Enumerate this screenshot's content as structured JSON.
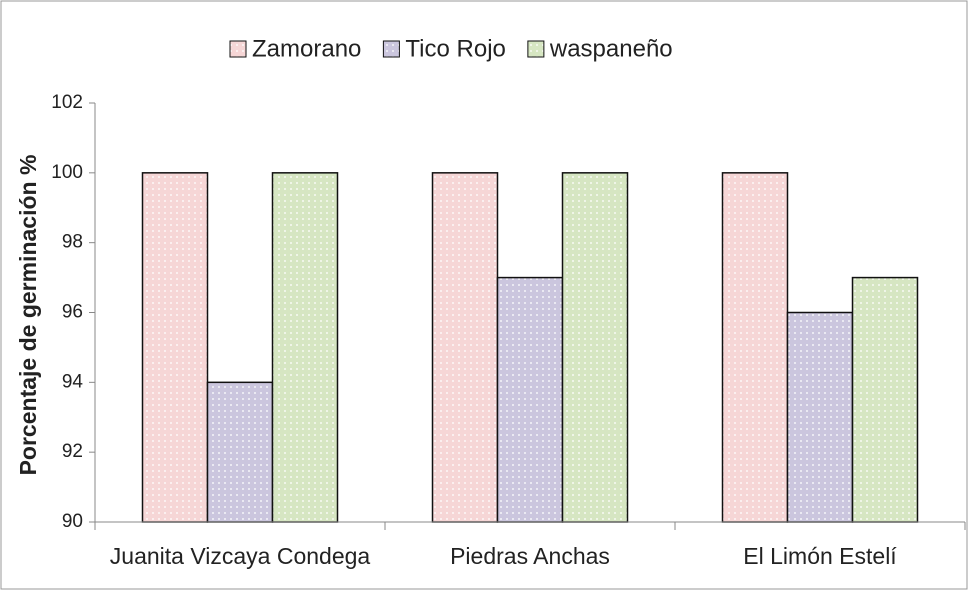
{
  "chart_data": {
    "type": "bar",
    "y_label": "Porcentaje de germinación %",
    "categories": [
      "Juanita Vizcaya Condega",
      "Piedras Anchas",
      "El Limón Estelí"
    ],
    "series": [
      {
        "name": "Zamorano",
        "color": "#f6d6d6",
        "values": [
          100,
          100,
          100
        ]
      },
      {
        "name": "Tico Rojo",
        "color": "#cbc6de",
        "values": [
          94,
          97,
          96
        ]
      },
      {
        "name": "waspaneño",
        "color": "#d6e6c2",
        "values": [
          100,
          100,
          97
        ]
      }
    ],
    "ylim": [
      90,
      102
    ],
    "yticks": [
      90,
      92,
      94,
      96,
      98,
      100,
      102
    ],
    "legend": "top"
  }
}
